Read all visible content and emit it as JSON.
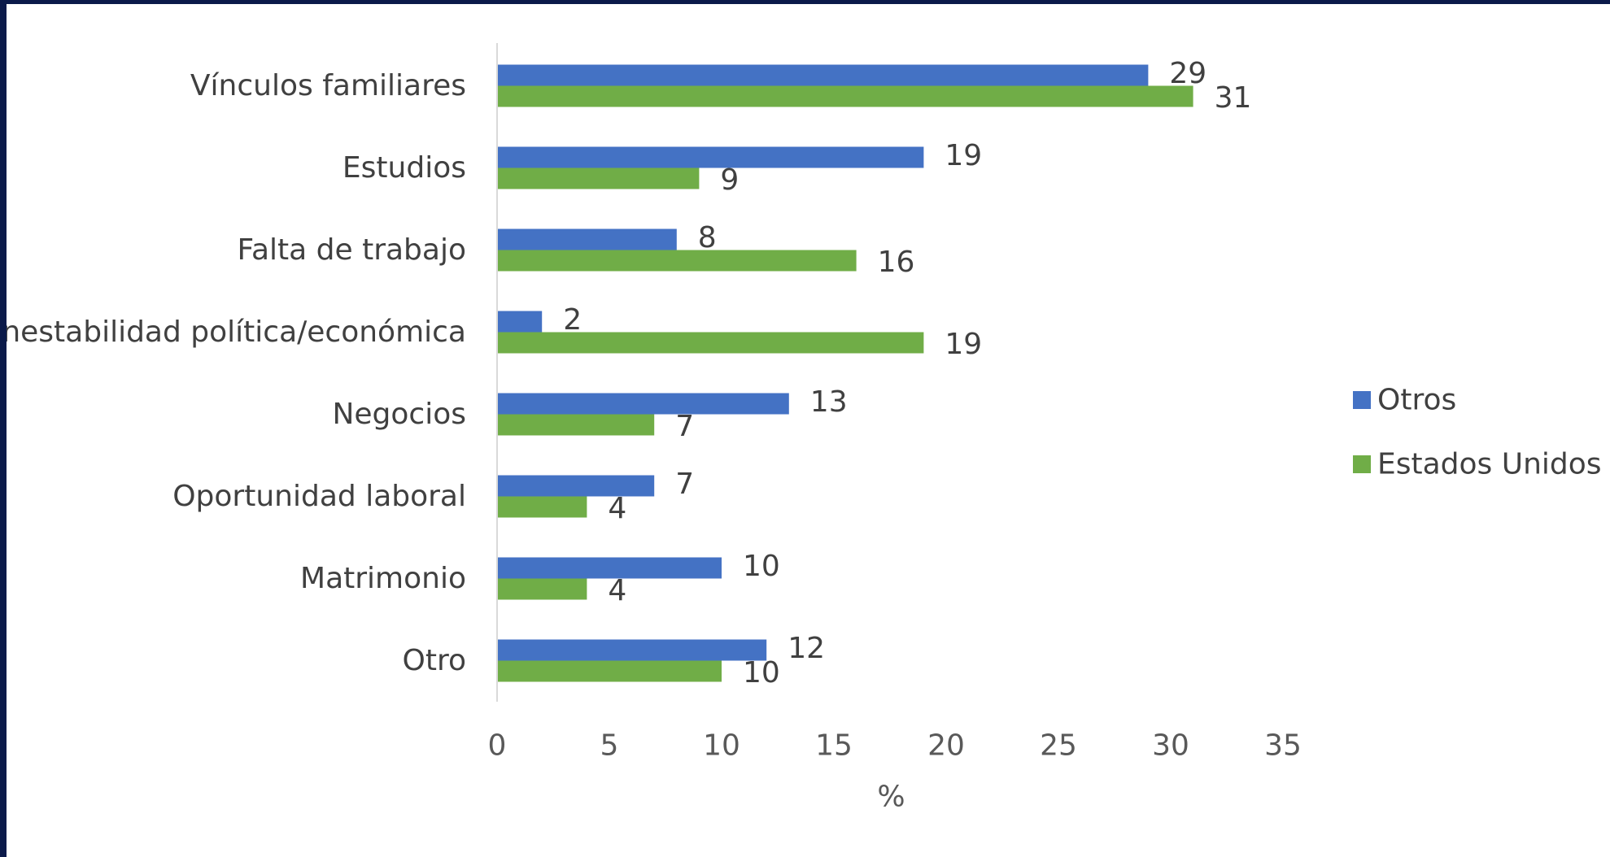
{
  "chart_data": {
    "type": "bar",
    "orientation": "horizontal",
    "categories": [
      "Vínculos familiares",
      "Estudios",
      "Falta de trabajo",
      "Inestabilidad política/económica",
      "Negocios",
      "Oportunidad laboral",
      "Matrimonio",
      "Otro"
    ],
    "series": [
      {
        "name": "Otros",
        "color": "#4472c4",
        "values": [
          29,
          19,
          8,
          2,
          13,
          7,
          10,
          12
        ]
      },
      {
        "name": "Estados Unidos",
        "color": "#70ad47",
        "values": [
          31,
          9,
          16,
          19,
          7,
          4,
          4,
          10
        ]
      }
    ],
    "xlabel": "%",
    "ylabel": "",
    "xlim": [
      0,
      35
    ],
    "xticks": [
      "0",
      "5",
      "10",
      "15",
      "20",
      "25",
      "30",
      "35"
    ],
    "data_labels": true,
    "grid": false,
    "legend_position": "right"
  }
}
